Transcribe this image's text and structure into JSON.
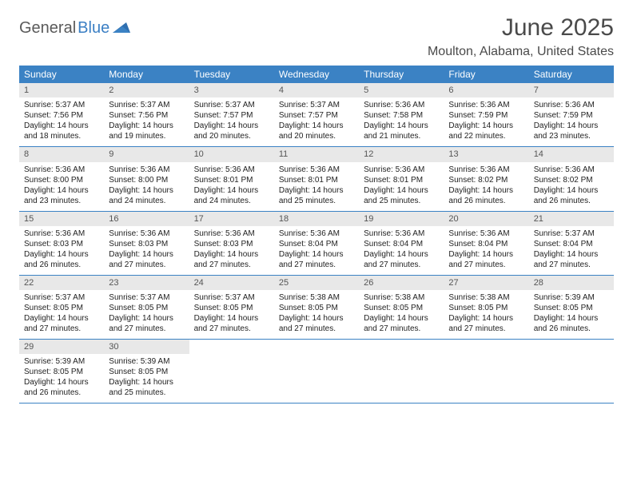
{
  "logo": {
    "part1": "General",
    "part2": "Blue"
  },
  "title": "June 2025",
  "location": "Moulton, Alabama, United States",
  "colors": {
    "header_bg": "#3b82c4",
    "header_text": "#ffffff",
    "daynum_bg": "#e8e8e8",
    "daynum_text": "#555555",
    "border": "#3b82c4",
    "title_text": "#4a4a4a",
    "body_text": "#222222"
  },
  "weekdays": [
    "Sunday",
    "Monday",
    "Tuesday",
    "Wednesday",
    "Thursday",
    "Friday",
    "Saturday"
  ],
  "weeks": [
    [
      {
        "n": "1",
        "sr": "5:37 AM",
        "ss": "7:56 PM",
        "dl": "14 hours and 18 minutes."
      },
      {
        "n": "2",
        "sr": "5:37 AM",
        "ss": "7:56 PM",
        "dl": "14 hours and 19 minutes."
      },
      {
        "n": "3",
        "sr": "5:37 AM",
        "ss": "7:57 PM",
        "dl": "14 hours and 20 minutes."
      },
      {
        "n": "4",
        "sr": "5:37 AM",
        "ss": "7:57 PM",
        "dl": "14 hours and 20 minutes."
      },
      {
        "n": "5",
        "sr": "5:36 AM",
        "ss": "7:58 PM",
        "dl": "14 hours and 21 minutes."
      },
      {
        "n": "6",
        "sr": "5:36 AM",
        "ss": "7:59 PM",
        "dl": "14 hours and 22 minutes."
      },
      {
        "n": "7",
        "sr": "5:36 AM",
        "ss": "7:59 PM",
        "dl": "14 hours and 23 minutes."
      }
    ],
    [
      {
        "n": "8",
        "sr": "5:36 AM",
        "ss": "8:00 PM",
        "dl": "14 hours and 23 minutes."
      },
      {
        "n": "9",
        "sr": "5:36 AM",
        "ss": "8:00 PM",
        "dl": "14 hours and 24 minutes."
      },
      {
        "n": "10",
        "sr": "5:36 AM",
        "ss": "8:01 PM",
        "dl": "14 hours and 24 minutes."
      },
      {
        "n": "11",
        "sr": "5:36 AM",
        "ss": "8:01 PM",
        "dl": "14 hours and 25 minutes."
      },
      {
        "n": "12",
        "sr": "5:36 AM",
        "ss": "8:01 PM",
        "dl": "14 hours and 25 minutes."
      },
      {
        "n": "13",
        "sr": "5:36 AM",
        "ss": "8:02 PM",
        "dl": "14 hours and 26 minutes."
      },
      {
        "n": "14",
        "sr": "5:36 AM",
        "ss": "8:02 PM",
        "dl": "14 hours and 26 minutes."
      }
    ],
    [
      {
        "n": "15",
        "sr": "5:36 AM",
        "ss": "8:03 PM",
        "dl": "14 hours and 26 minutes."
      },
      {
        "n": "16",
        "sr": "5:36 AM",
        "ss": "8:03 PM",
        "dl": "14 hours and 27 minutes."
      },
      {
        "n": "17",
        "sr": "5:36 AM",
        "ss": "8:03 PM",
        "dl": "14 hours and 27 minutes."
      },
      {
        "n": "18",
        "sr": "5:36 AM",
        "ss": "8:04 PM",
        "dl": "14 hours and 27 minutes."
      },
      {
        "n": "19",
        "sr": "5:36 AM",
        "ss": "8:04 PM",
        "dl": "14 hours and 27 minutes."
      },
      {
        "n": "20",
        "sr": "5:36 AM",
        "ss": "8:04 PM",
        "dl": "14 hours and 27 minutes."
      },
      {
        "n": "21",
        "sr": "5:37 AM",
        "ss": "8:04 PM",
        "dl": "14 hours and 27 minutes."
      }
    ],
    [
      {
        "n": "22",
        "sr": "5:37 AM",
        "ss": "8:05 PM",
        "dl": "14 hours and 27 minutes."
      },
      {
        "n": "23",
        "sr": "5:37 AM",
        "ss": "8:05 PM",
        "dl": "14 hours and 27 minutes."
      },
      {
        "n": "24",
        "sr": "5:37 AM",
        "ss": "8:05 PM",
        "dl": "14 hours and 27 minutes."
      },
      {
        "n": "25",
        "sr": "5:38 AM",
        "ss": "8:05 PM",
        "dl": "14 hours and 27 minutes."
      },
      {
        "n": "26",
        "sr": "5:38 AM",
        "ss": "8:05 PM",
        "dl": "14 hours and 27 minutes."
      },
      {
        "n": "27",
        "sr": "5:38 AM",
        "ss": "8:05 PM",
        "dl": "14 hours and 27 minutes."
      },
      {
        "n": "28",
        "sr": "5:39 AM",
        "ss": "8:05 PM",
        "dl": "14 hours and 26 minutes."
      }
    ],
    [
      {
        "n": "29",
        "sr": "5:39 AM",
        "ss": "8:05 PM",
        "dl": "14 hours and 26 minutes."
      },
      {
        "n": "30",
        "sr": "5:39 AM",
        "ss": "8:05 PM",
        "dl": "14 hours and 25 minutes."
      },
      null,
      null,
      null,
      null,
      null
    ]
  ],
  "labels": {
    "sunrise": "Sunrise:",
    "sunset": "Sunset:",
    "daylight": "Daylight:"
  }
}
